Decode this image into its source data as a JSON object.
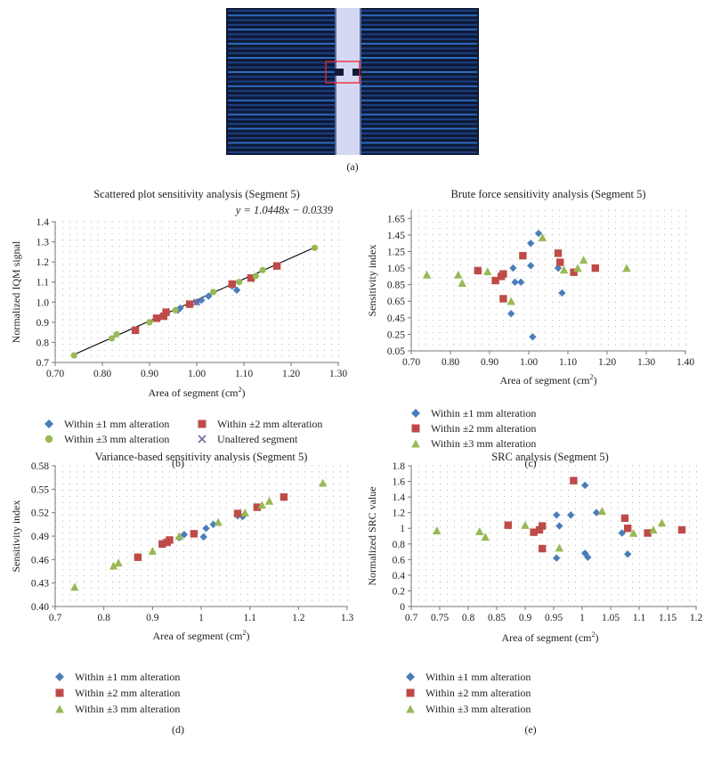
{
  "figure": {
    "captions": [
      "(a)",
      "(b)",
      "(c)",
      "(d)",
      "(e)"
    ]
  },
  "colors": {
    "blue": "#4a7ebb",
    "red": "#be4b48",
    "green": "#98b954",
    "purple": "#7e64a0",
    "fit_line": "#000000"
  },
  "legend_b": [
    {
      "label": "Within ±1 mm alteration",
      "marker": "diamond",
      "color": "#4a7ebb"
    },
    {
      "label": "Within ±2 mm alteration",
      "marker": "square",
      "color": "#be4b48"
    },
    {
      "label": "Within ±3 mm alteration",
      "marker": "circle",
      "color": "#98b954"
    },
    {
      "label": "Unaltered segment",
      "marker": "cross",
      "color": "#7e64a0"
    }
  ],
  "legend_cde": [
    {
      "label": "Within ±1 mm alteration",
      "marker": "diamond",
      "color": "#4a7ebb"
    },
    {
      "label": "Within ±2 mm alteration",
      "marker": "square",
      "color": "#be4b48"
    },
    {
      "label": "Within ±3 mm alteration",
      "marker": "triangle",
      "color": "#98b954"
    }
  ],
  "chart_data": [
    {
      "id": "b",
      "type": "scatter",
      "title": "Scattered plot sensitivity analysis (Segment 5)",
      "xlabel": "Area of segment (cm²)",
      "ylabel": "Normalized IQM signal",
      "xlim": [
        0.7,
        1.3
      ],
      "ylim": [
        0.7,
        1.4
      ],
      "xticks": [
        0.7,
        0.8,
        0.9,
        1.0,
        1.1,
        1.2,
        1.3
      ],
      "xtick_labels": [
        "0.70",
        "0.80",
        "0.90",
        "1.00",
        "1.10",
        "1.20",
        "1.30"
      ],
      "yticks": [
        0.7,
        0.8,
        0.9,
        1.0,
        1.1,
        1.2,
        1.3,
        1.4
      ],
      "ytick_labels": [
        "0.7",
        "0.8",
        "0.9",
        "1.0",
        "1.1",
        "1.2",
        "1.3",
        "1.4"
      ],
      "equation": "y = 1.0448x − 0.0339",
      "fit": {
        "slope": 1.0448,
        "intercept": -0.0339,
        "x_range": [
          0.74,
          1.25
        ]
      },
      "series": [
        {
          "name": "Within ±1 mm alteration",
          "marker": "diamond",
          "color": "#4a7ebb",
          "x": [
            0.96,
            0.965,
            1.0,
            1.01,
            1.025,
            1.075,
            1.085
          ],
          "y": [
            0.96,
            0.97,
            1.0,
            1.01,
            1.03,
            1.08,
            1.06
          ]
        },
        {
          "name": "Within ±2 mm alteration",
          "marker": "square",
          "color": "#be4b48",
          "x": [
            0.87,
            0.915,
            0.93,
            0.935,
            0.985,
            1.075,
            1.115,
            1.17
          ],
          "y": [
            0.86,
            0.92,
            0.93,
            0.95,
            0.99,
            1.09,
            1.12,
            1.18
          ]
        },
        {
          "name": "Within ±3 mm alteration",
          "marker": "circle",
          "color": "#98b954",
          "x": [
            0.74,
            0.82,
            0.83,
            0.9,
            0.955,
            1.035,
            1.09,
            1.125,
            1.14,
            1.25
          ],
          "y": [
            0.735,
            0.82,
            0.84,
            0.9,
            0.96,
            1.05,
            1.1,
            1.13,
            1.16,
            1.27
          ]
        },
        {
          "name": "Unaltered segment",
          "marker": "cross",
          "color": "#7e64a0",
          "x": [
            1.0
          ],
          "y": [
            1.0
          ]
        }
      ]
    },
    {
      "id": "c",
      "type": "scatter",
      "title": "Brute force sensitivity analysis (Segment 5)",
      "xlabel": "Area of segment (cm²)",
      "ylabel": "Sensitivity index",
      "xlim": [
        0.7,
        1.4
      ],
      "ylim": [
        0.05,
        1.75
      ],
      "xticks": [
        0.7,
        0.8,
        0.9,
        1.0,
        1.1,
        1.2,
        1.3,
        1.4
      ],
      "xtick_labels": [
        "0.70",
        "0.80",
        "0.90",
        "1.00",
        "1.10",
        "1.20",
        "1.30",
        "1.40"
      ],
      "yticks": [
        0.05,
        0.25,
        0.45,
        0.65,
        0.85,
        1.05,
        1.25,
        1.45,
        1.65
      ],
      "ytick_labels": [
        "0.05",
        "0.25",
        "0.45",
        "0.65",
        "0.85",
        "1.05",
        "1.25",
        "1.45",
        "1.65"
      ],
      "series": [
        {
          "name": "Within ±1 mm alteration",
          "marker": "diamond",
          "color": "#4a7ebb",
          "x": [
            0.955,
            0.96,
            0.965,
            0.98,
            1.005,
            1.005,
            1.01,
            1.025,
            1.075,
            1.085
          ],
          "y": [
            0.5,
            1.05,
            0.88,
            0.88,
            1.35,
            1.08,
            0.22,
            1.47,
            1.05,
            0.75
          ]
        },
        {
          "name": "Within ±2 mm alteration",
          "marker": "square",
          "color": "#be4b48",
          "x": [
            0.87,
            0.915,
            0.93,
            0.935,
            0.935,
            0.985,
            1.075,
            1.08,
            1.115,
            1.17
          ],
          "y": [
            1.02,
            0.9,
            0.95,
            0.98,
            0.68,
            1.2,
            1.23,
            1.12,
            1.0,
            1.05
          ]
        },
        {
          "name": "Within ±3 mm alteration",
          "marker": "triangle",
          "color": "#98b954",
          "x": [
            0.74,
            0.82,
            0.83,
            0.895,
            0.955,
            1.035,
            1.09,
            1.125,
            1.14,
            1.25
          ],
          "y": [
            0.97,
            0.97,
            0.87,
            1.01,
            0.65,
            1.42,
            1.03,
            1.05,
            1.15,
            1.05
          ]
        }
      ]
    },
    {
      "id": "d",
      "type": "scatter",
      "title": "Variance-based sensitivity analysis (Segment 5)",
      "xlabel": "Area of segment (cm²)",
      "ylabel": "Sensitivity index",
      "xlim": [
        0.7,
        1.3
      ],
      "ylim": [
        0.4,
        0.58
      ],
      "xticks": [
        0.7,
        0.8,
        0.9,
        1.0,
        1.1,
        1.2,
        1.3
      ],
      "xtick_labels": [
        "0.7",
        "0.8",
        "0.9",
        "1",
        "1.1",
        "1.2",
        "1.3"
      ],
      "yticks": [
        0.4,
        0.43,
        0.46,
        0.49,
        0.52,
        0.55,
        0.58
      ],
      "ytick_labels": [
        "0.40",
        "0.43",
        "0.46",
        "0.49",
        "0.52",
        "0.55",
        "0.58"
      ],
      "series": [
        {
          "name": "Within ±1 mm alteration",
          "marker": "diamond",
          "color": "#4a7ebb",
          "x": [
            0.955,
            0.965,
            1.005,
            1.01,
            1.025,
            1.075,
            1.085
          ],
          "y": [
            0.488,
            0.492,
            0.489,
            0.5,
            0.505,
            0.516,
            0.515
          ]
        },
        {
          "name": "Within ±2 mm alteration",
          "marker": "square",
          "color": "#be4b48",
          "x": [
            0.87,
            0.92,
            0.93,
            0.935,
            0.985,
            1.075,
            1.115,
            1.17
          ],
          "y": [
            0.463,
            0.48,
            0.482,
            0.485,
            0.493,
            0.519,
            0.527,
            0.54
          ]
        },
        {
          "name": "Within ±3 mm alteration",
          "marker": "triangle",
          "color": "#98b954",
          "x": [
            0.74,
            0.82,
            0.83,
            0.9,
            0.955,
            1.035,
            1.09,
            1.125,
            1.14,
            1.25
          ],
          "y": [
            0.425,
            0.452,
            0.456,
            0.471,
            0.49,
            0.508,
            0.52,
            0.53,
            0.535,
            0.558
          ]
        }
      ]
    },
    {
      "id": "e",
      "type": "scatter",
      "title": "SRC analysis (Segment 5)",
      "xlabel": "Area of segment (cm²)",
      "ylabel": "Normalized SRC value",
      "xlim": [
        0.7,
        1.2
      ],
      "ylim": [
        0,
        1.8
      ],
      "xticks": [
        0.7,
        0.75,
        0.8,
        0.85,
        0.9,
        0.95,
        1.0,
        1.05,
        1.1,
        1.15,
        1.2
      ],
      "xtick_labels": [
        "0.7",
        "0.75",
        "0.8",
        "0.85",
        "0.9",
        "0.95",
        "1",
        "1.05",
        "1.1",
        "1.15",
        "1.2"
      ],
      "yticks": [
        0,
        0.2,
        0.4,
        0.6,
        0.8,
        1.0,
        1.2,
        1.4,
        1.6,
        1.8
      ],
      "ytick_labels": [
        "0",
        "0.2",
        "0.4",
        "0.6",
        "0.8",
        "1",
        "1.2",
        "1.4",
        "1.6",
        "1.8"
      ],
      "series": [
        {
          "name": "Within ±1 mm alteration",
          "marker": "diamond",
          "color": "#4a7ebb",
          "x": [
            0.955,
            0.955,
            0.96,
            0.98,
            1.005,
            1.005,
            1.01,
            1.025,
            1.07,
            1.08
          ],
          "y": [
            0.62,
            1.17,
            1.03,
            1.17,
            1.55,
            0.68,
            0.63,
            1.2,
            0.94,
            0.67
          ]
        },
        {
          "name": "Within ±2 mm alteration",
          "marker": "square",
          "color": "#be4b48",
          "x": [
            0.87,
            0.915,
            0.925,
            0.93,
            0.93,
            0.985,
            1.075,
            1.08,
            1.115,
            1.175
          ],
          "y": [
            1.04,
            0.95,
            0.98,
            1.03,
            0.74,
            1.61,
            1.13,
            1.0,
            0.94,
            0.98
          ]
        },
        {
          "name": "Within ±3 mm alteration",
          "marker": "triangle",
          "color": "#98b954",
          "x": [
            0.745,
            0.82,
            0.83,
            0.9,
            0.96,
            1.035,
            1.09,
            1.125,
            1.14
          ],
          "y": [
            0.97,
            0.96,
            0.89,
            1.04,
            0.75,
            1.22,
            0.94,
            0.98,
            1.07
          ]
        }
      ]
    }
  ]
}
